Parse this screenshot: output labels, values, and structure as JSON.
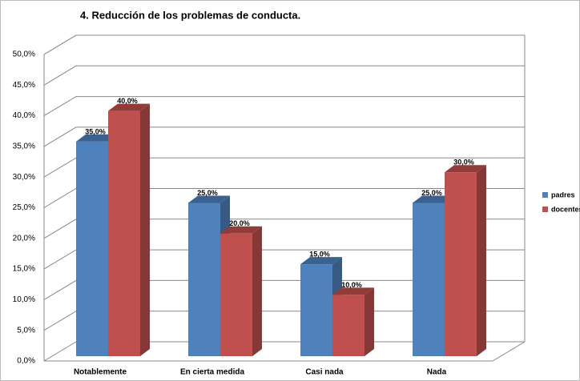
{
  "chart_data": {
    "type": "bar3d",
    "title": "4.   Reducción de los problemas de conducta.",
    "categories": [
      "Notablemente",
      "En cierta medida",
      "Casi nada",
      "Nada"
    ],
    "series": [
      {
        "name": "padres",
        "color": "#4f81bd",
        "values": [
          35,
          25,
          15,
          25
        ],
        "value_labels": [
          "35,0%",
          "25,0%",
          "15,0%",
          "25,0%"
        ]
      },
      {
        "name": "docentes",
        "color": "#c0504d",
        "values": [
          40,
          20,
          10,
          30
        ],
        "value_labels": [
          "40,0%",
          "20,0%",
          "10,0%",
          "30,0%"
        ]
      }
    ],
    "ylim": [
      0,
      50
    ],
    "yticks": [
      {
        "value": 0,
        "label": "0,0%"
      },
      {
        "value": 5,
        "label": "5,0%"
      },
      {
        "value": 10,
        "label": "10,0%"
      },
      {
        "value": 15,
        "label": "15,0%"
      },
      {
        "value": 20,
        "label": "20,0%"
      },
      {
        "value": 25,
        "label": "25,0%"
      },
      {
        "value": 30,
        "label": "30,0%"
      },
      {
        "value": 35,
        "label": "35,0%"
      },
      {
        "value": 40,
        "label": "40,0%"
      },
      {
        "value": 45,
        "label": "45,0%"
      },
      {
        "value": 50,
        "label": "50,0%"
      }
    ],
    "grid": true,
    "legend": "right"
  }
}
